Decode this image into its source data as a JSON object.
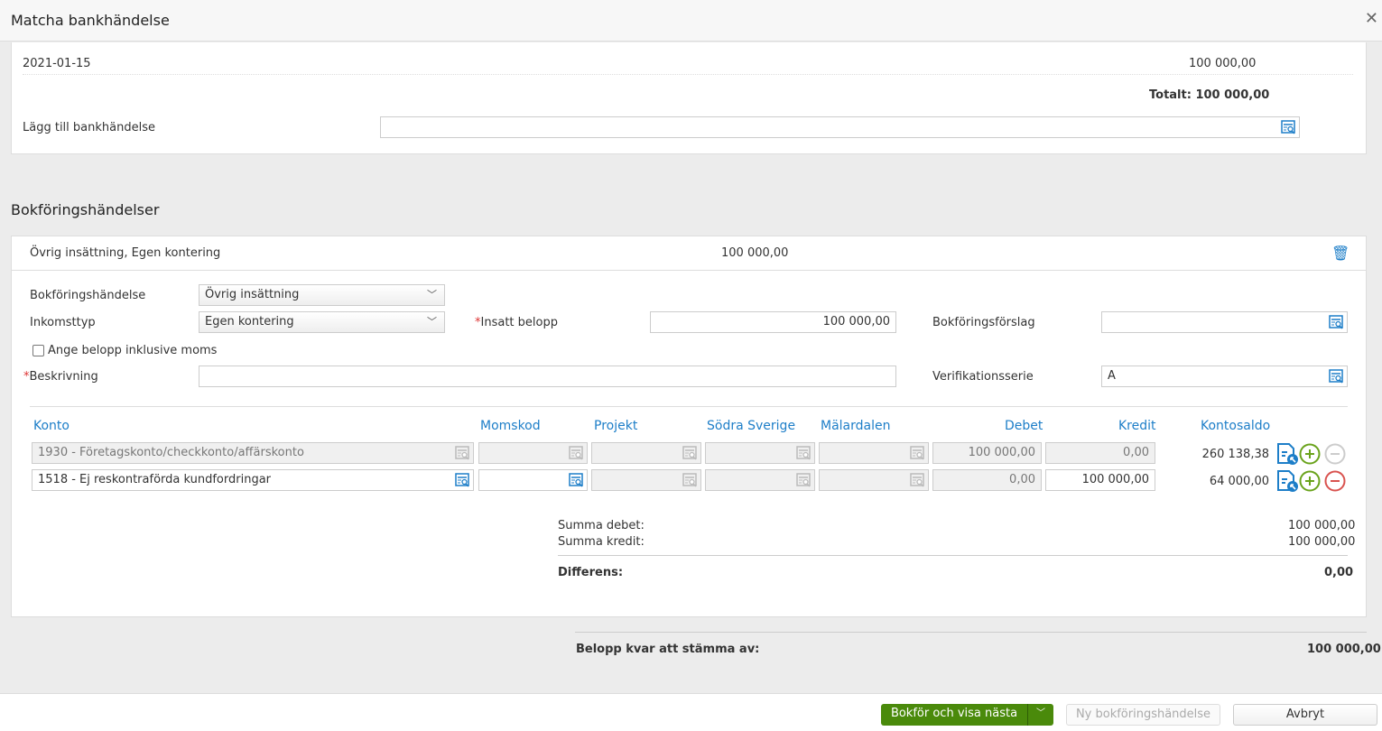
{
  "dialog": {
    "title": "Matcha bankhändelse",
    "close_icon": "close-icon"
  },
  "bank": {
    "date": "2021-01-15",
    "amount": "100 000,00",
    "total": "Totalt: 100 000,00",
    "add_label": "Lägg till bankhändelse",
    "add_value": ""
  },
  "section_title": "Bokföringshändelser",
  "event": {
    "summary": "Övrig insättning, Egen kontering",
    "amount": "100 000,00",
    "fields": {
      "bokf_label": "Bokföringshändelse",
      "bokf_value": "Övrig insättning",
      "inkomst_label": "Inkomsttyp",
      "inkomst_value": "Egen kontering",
      "insatt_label": "Insatt belopp",
      "insatt_value": "100 000,00",
      "forslag_label": "Bokföringsförslag",
      "forslag_value": "",
      "moms_label": "Ange belopp inklusive moms",
      "moms_checked": false,
      "beskr_label": "Beskrivning",
      "beskr_value": "",
      "serie_label": "Verifikationsserie",
      "serie_value": "A"
    },
    "columns": [
      "Konto",
      "Momskod",
      "Projekt",
      "Södra Sverige",
      "Mälardalen",
      "Debet",
      "Kredit",
      "Kontosaldo"
    ],
    "rows": [
      {
        "konto": "1930 - Företagskonto/checkkonto/affärskonto",
        "momskod": "",
        "projekt": "",
        "sodra": "",
        "malardalen": "",
        "debet": "100 000,00",
        "kredit": "0,00",
        "saldo": "260 138,38"
      },
      {
        "konto": "1518 - Ej reskontraförda kundfordringar",
        "momskod": "",
        "projekt": "",
        "sodra": "",
        "malardalen": "",
        "debet": "0,00",
        "kredit": "100 000,00",
        "saldo": "64 000,00"
      }
    ],
    "totals": {
      "debet_label": "Summa debet:",
      "debet": "100 000,00",
      "kredit_label": "Summa kredit:",
      "kredit": "100 000,00",
      "diff_label": "Differens:",
      "diff": "0,00"
    }
  },
  "remaining": {
    "label": "Belopp kvar att stämma av:",
    "value": "100 000,00"
  },
  "footer": {
    "primary": "Bokför och visa nästa",
    "new": "Ny bokföringshändelse",
    "cancel": "Avbryt"
  },
  "colors": {
    "accent": "#1d7ec8",
    "primary": "#4a8a0b",
    "plus": "#6aa31c",
    "minus": "#d9534f"
  }
}
